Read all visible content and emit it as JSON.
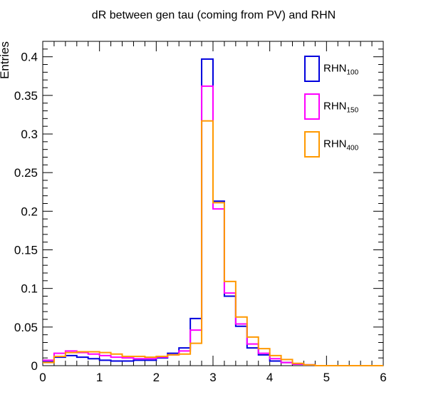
{
  "chart_data": {
    "type": "histogram",
    "title": "dR between gen tau (coming from PV) and RHN",
    "xlabel": "",
    "ylabel": "Entries",
    "xlim": [
      0,
      6
    ],
    "ylim": [
      0,
      0.42
    ],
    "x_ticks": [
      "0",
      "1",
      "2",
      "3",
      "4",
      "5",
      "6"
    ],
    "y_ticks": [
      "0",
      "0.05",
      "0.1",
      "0.15",
      "0.2",
      "0.25",
      "0.3",
      "0.35",
      "0.4"
    ],
    "bin_width": 0.2,
    "bin_edges_start": 0,
    "legend_position": "top-right",
    "series": [
      {
        "name": "RHN",
        "name_sub": "100",
        "color": "#0000dd",
        "values": [
          0.005,
          0.011,
          0.013,
          0.011,
          0.009,
          0.007,
          0.006,
          0.006,
          0.007,
          0.007,
          0.01,
          0.016,
          0.023,
          0.061,
          0.397,
          0.213,
          0.09,
          0.051,
          0.023,
          0.014,
          0.006,
          0.004,
          0.002,
          0.001,
          0.0,
          0.0,
          0.0,
          0.0,
          0.0,
          0.0
        ]
      },
      {
        "name": "RHN",
        "name_sub": "150",
        "color": "#ff00ff",
        "values": [
          0.007,
          0.016,
          0.019,
          0.017,
          0.015,
          0.013,
          0.011,
          0.01,
          0.009,
          0.009,
          0.011,
          0.014,
          0.019,
          0.046,
          0.362,
          0.203,
          0.094,
          0.054,
          0.028,
          0.016,
          0.009,
          0.004,
          0.002,
          0.001,
          0.0,
          0.0,
          0.0,
          0.0,
          0.0,
          0.0
        ]
      },
      {
        "name": "RHN",
        "name_sub": "400",
        "color": "#ff9900",
        "values": [
          0.004,
          0.012,
          0.017,
          0.018,
          0.018,
          0.017,
          0.015,
          0.012,
          0.012,
          0.011,
          0.012,
          0.014,
          0.015,
          0.029,
          0.317,
          0.211,
          0.109,
          0.063,
          0.037,
          0.022,
          0.013,
          0.008,
          0.003,
          0.001,
          0.0,
          0.0,
          0.0,
          0.0,
          0.0,
          0.0
        ]
      }
    ]
  }
}
